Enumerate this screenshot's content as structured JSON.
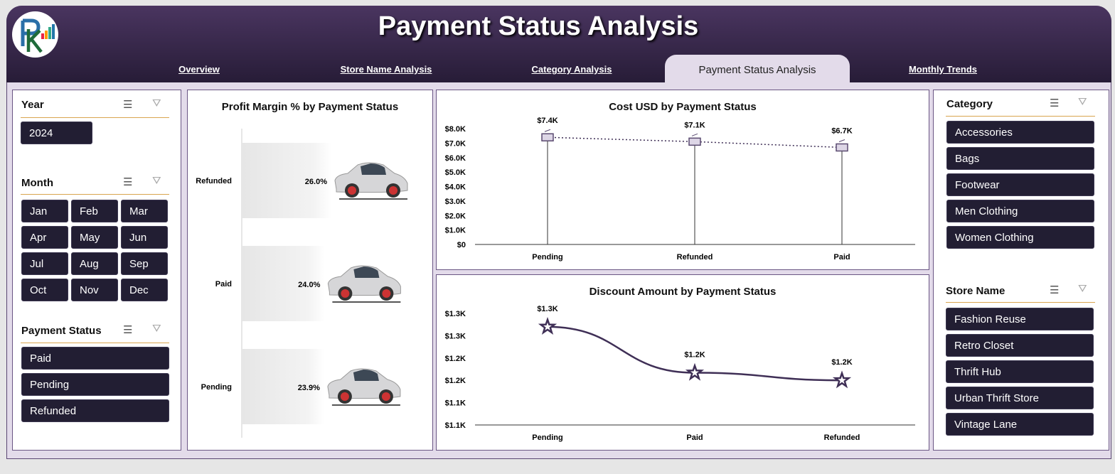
{
  "header": {
    "title": "Payment Status Analysis",
    "logo_text": "PK"
  },
  "tabs": [
    {
      "label": "Overview"
    },
    {
      "label": "Store Name Analysis"
    },
    {
      "label": "Category Analysis"
    },
    {
      "label": "Payment Status Analysis",
      "active": true
    },
    {
      "label": "Monthly Trends"
    }
  ],
  "slicers": {
    "year": {
      "title": "Year",
      "items": [
        "2024"
      ]
    },
    "month": {
      "title": "Month",
      "items": [
        "Jan",
        "Feb",
        "Mar",
        "Apr",
        "May",
        "Jun",
        "Jul",
        "Aug",
        "Sep",
        "Oct",
        "Nov",
        "Dec"
      ]
    },
    "payment_status": {
      "title": "Payment Status",
      "items": [
        "Paid",
        "Pending",
        "Refunded"
      ]
    },
    "category": {
      "title": "Category",
      "items": [
        "Accessories",
        "Bags",
        "Footwear",
        "Men Clothing",
        "Women Clothing"
      ]
    },
    "store_name": {
      "title": "Store Name",
      "items": [
        "Fashion Reuse",
        "Retro Closet",
        "Thrift Hub",
        "Urban Thrift Store",
        "Vintage Lane"
      ]
    }
  },
  "colors": {
    "header": "#3b2a50",
    "button": "#221e33",
    "accent_line": "#d9a54f",
    "series": "#3f2f56"
  },
  "chart_data": [
    {
      "type": "bar",
      "orientation": "horizontal",
      "title": "Profit Margin % by Payment Status",
      "categories": [
        "Refunded",
        "Paid",
        "Pending"
      ],
      "values": [
        26.0,
        24.0,
        23.9
      ],
      "data_labels": [
        "26.0%",
        "24.0%",
        "23.9%"
      ]
    },
    {
      "type": "line",
      "title": "Cost USD by Payment Status",
      "categories": [
        "Pending",
        "Refunded",
        "Paid"
      ],
      "values": [
        7400,
        7100,
        6700
      ],
      "data_labels": [
        "$7.4K",
        "$7.1K",
        "$6.7K"
      ],
      "ylim": [
        0,
        8000
      ],
      "yticks": [
        "$0",
        "$1.0K",
        "$2.0K",
        "$3.0K",
        "$4.0K",
        "$5.0K",
        "$6.0K",
        "$7.0K",
        "$8.0K"
      ],
      "grid": false
    },
    {
      "type": "line",
      "title": "Discount Amount by Payment Status",
      "categories": [
        "Pending",
        "Paid",
        "Refunded"
      ],
      "values": [
        1320,
        1217,
        1200
      ],
      "data_labels": [
        "$1.3K",
        "$1.2K",
        "$1.2K"
      ],
      "ylim": [
        1100,
        1350
      ],
      "yticks": [
        "$1.1K",
        "$1.1K",
        "$1.2K",
        "$1.2K",
        "$1.3K",
        "$1.3K"
      ],
      "grid": false
    }
  ]
}
